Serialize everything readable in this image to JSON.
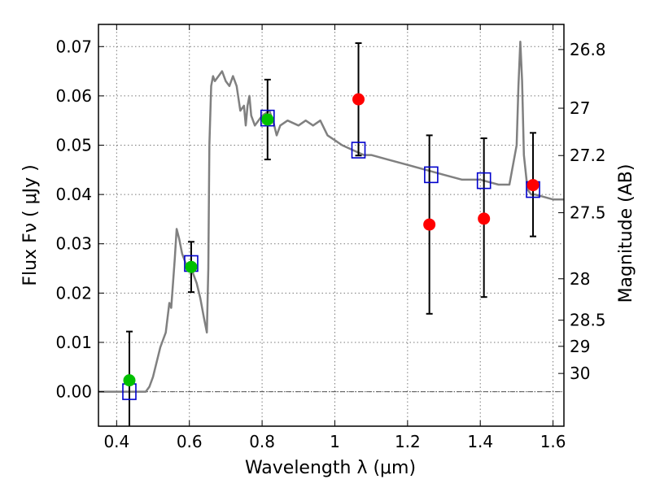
{
  "chart_data": {
    "type": "scatter",
    "xlabel": "Wavelength  λ (μm)",
    "ylabel": "Flux  Fν  ( μJy )",
    "y2label": "Magnitude (AB)",
    "xlim": [
      0.35,
      1.63
    ],
    "ylim": [
      -0.007,
      0.0745
    ],
    "grid": true,
    "x_ticks": [
      0.4,
      0.6,
      0.8,
      1.0,
      1.2,
      1.4,
      1.6
    ],
    "x_tick_labels": [
      "0.4",
      "0.6",
      "0.8",
      "1",
      "1.2",
      "1.4",
      "1.6"
    ],
    "y_ticks": [
      0.0,
      0.01,
      0.02,
      0.03,
      0.04,
      0.05,
      0.06,
      0.07
    ],
    "y_tick_labels": [
      "0.00",
      "0.01",
      "0.02",
      "0.03",
      "0.04",
      "0.05",
      "0.06",
      "0.07"
    ],
    "mag_ticks": [
      {
        "label": "26.8",
        "flux": 0.0694
      },
      {
        "label": "27",
        "flux": 0.0575
      },
      {
        "label": "27.2",
        "flux": 0.0479
      },
      {
        "label": "27.5",
        "flux": 0.0363
      },
      {
        "label": "28",
        "flux": 0.0229
      },
      {
        "label": "28.5",
        "flux": 0.0145
      },
      {
        "label": "29",
        "flux": 0.0092
      },
      {
        "label": "30",
        "flux": 0.0037
      }
    ],
    "model_sed": {
      "color": "#808080",
      "x": [
        0.35,
        0.48,
        0.49,
        0.5,
        0.52,
        0.535,
        0.545,
        0.55,
        0.56,
        0.565,
        0.572,
        0.58,
        0.59,
        0.6,
        0.605,
        0.61,
        0.62,
        0.63,
        0.64,
        0.648,
        0.652,
        0.655,
        0.66,
        0.665,
        0.67,
        0.68,
        0.69,
        0.7,
        0.71,
        0.72,
        0.73,
        0.74,
        0.75,
        0.755,
        0.76,
        0.765,
        0.77,
        0.78,
        0.8,
        0.82,
        0.83,
        0.84,
        0.85,
        0.87,
        0.9,
        0.92,
        0.94,
        0.96,
        0.98,
        1.0,
        1.02,
        1.05,
        1.08,
        1.1,
        1.15,
        1.2,
        1.25,
        1.3,
        1.35,
        1.4,
        1.45,
        1.48,
        1.5,
        1.505,
        1.51,
        1.515,
        1.52,
        1.53,
        1.54,
        1.55,
        1.6,
        1.63
      ],
      "y": [
        0.0,
        0.0,
        0.001,
        0.003,
        0.009,
        0.012,
        0.018,
        0.017,
        0.027,
        0.033,
        0.031,
        0.028,
        0.026,
        0.025,
        0.026,
        0.024,
        0.022,
        0.019,
        0.015,
        0.012,
        0.025,
        0.05,
        0.062,
        0.064,
        0.063,
        0.064,
        0.065,
        0.063,
        0.062,
        0.064,
        0.062,
        0.057,
        0.058,
        0.054,
        0.058,
        0.06,
        0.056,
        0.054,
        0.056,
        0.057,
        0.055,
        0.052,
        0.054,
        0.055,
        0.054,
        0.055,
        0.054,
        0.055,
        0.052,
        0.051,
        0.05,
        0.049,
        0.048,
        0.048,
        0.047,
        0.046,
        0.045,
        0.044,
        0.043,
        0.043,
        0.042,
        0.042,
        0.05,
        0.062,
        0.071,
        0.063,
        0.048,
        0.041,
        0.04,
        0.04,
        0.039,
        0.039
      ]
    },
    "series": [
      {
        "marker": "square",
        "color": "#0000cc",
        "x": [
          0.435,
          0.605,
          0.815,
          1.065,
          1.265,
          1.41,
          1.545
        ],
        "y": [
          0.0,
          0.026,
          0.0555,
          0.049,
          0.044,
          0.0428,
          0.041
        ]
      },
      {
        "marker": "circle",
        "color": "#00c000",
        "x": [
          0.435,
          0.605,
          0.815
        ],
        "y": [
          0.0023,
          0.0253,
          0.0552
        ],
        "yerr_low": [
          0.0125,
          0.0051,
          0.0081
        ],
        "yerr_high": [
          0.0099,
          0.0051,
          0.0081
        ]
      },
      {
        "marker": "circle",
        "color": "#ff0000",
        "x": [
          1.065,
          1.26,
          1.41,
          1.545
        ],
        "y": [
          0.0593,
          0.0339,
          0.0351,
          0.0419
        ],
        "yerr_low": [
          0.0114,
          0.0181,
          0.0159,
          0.0104
        ],
        "yerr_high": [
          0.0114,
          0.0181,
          0.0163,
          0.0106
        ]
      }
    ]
  }
}
